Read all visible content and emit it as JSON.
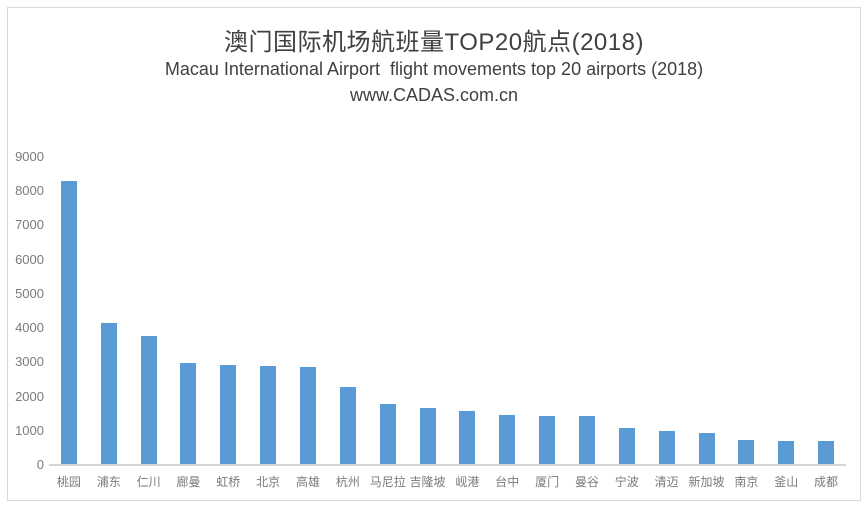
{
  "header": {
    "title": "澳门国际机场航班量TOP20航点(2018)",
    "subtitle": "Macau International Airport  flight movements top 20 airports (2018)",
    "source": "www.CADAS.com.cn"
  },
  "chart_data": {
    "type": "bar",
    "title": "澳门国际机场航班量TOP20航点(2018)",
    "subtitle": "Macau International Airport  flight movements top 20 airports (2018)",
    "source": "www.CADAS.com.cn",
    "categories": [
      "桃园",
      "浦东",
      "仁川",
      "廊曼",
      "虹桥",
      "北京",
      "高雄",
      "杭州",
      "马尼拉",
      "吉隆坡",
      "岘港",
      "台中",
      "厦门",
      "曼谷",
      "宁波",
      "清迈",
      "新加坡",
      "南京",
      "釜山",
      "成都"
    ],
    "values": [
      8280,
      4130,
      3730,
      2940,
      2890,
      2860,
      2830,
      2250,
      1740,
      1640,
      1540,
      1420,
      1400,
      1390,
      1040,
      960,
      920,
      690,
      680,
      670
    ],
    "xlabel": "",
    "ylabel": "",
    "ylim": [
      0,
      9000
    ],
    "ytick_step": 1000,
    "yticks": [
      0,
      1000,
      2000,
      3000,
      4000,
      5000,
      6000,
      7000,
      8000,
      9000
    ],
    "grid": false,
    "legend": "none",
    "bar_color": "#5B9BD5",
    "axis_line_color": "#d6d6d6",
    "tick_label_color": "#7b7b7b",
    "title_color": "#404040"
  }
}
